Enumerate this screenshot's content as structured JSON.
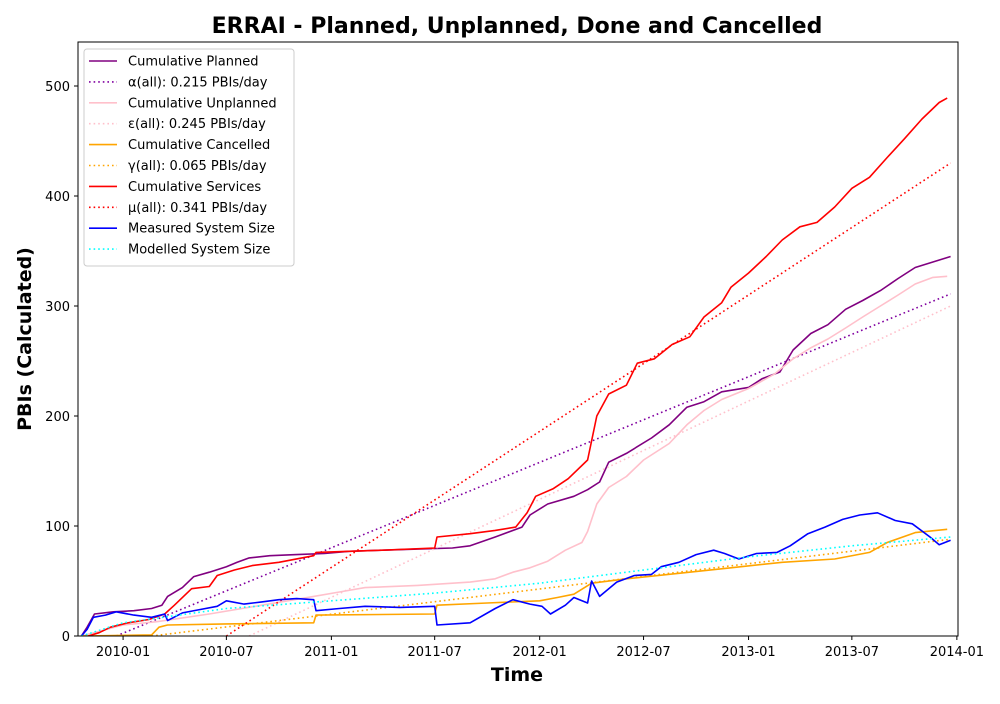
{
  "chart_data": {
    "type": "line",
    "title": "ERRAI - Planned, Unplanned, Done  and Cancelled",
    "xlabel": "Time",
    "ylabel": "PBIs (Calculated)",
    "xlim": [
      "2009-10-14",
      "2014-01-03"
    ],
    "ylim": [
      0,
      540
    ],
    "x_ticks": [
      "2010-01",
      "2010-07",
      "2011-01",
      "2011-07",
      "2012-01",
      "2012-07",
      "2013-01",
      "2013-07",
      "2014-01"
    ],
    "y_ticks": [
      0,
      100,
      200,
      300,
      400,
      500
    ],
    "grid": false,
    "legend_position": "upper-left",
    "series": [
      {
        "name": "Cumulative Planned",
        "color": "#800080",
        "style": "solid",
        "points": [
          [
            "2009-10-20",
            0
          ],
          [
            "2009-10-30",
            8
          ],
          [
            "2009-11-12",
            20
          ],
          [
            "2009-12-15",
            22
          ],
          [
            "2010-01-20",
            23
          ],
          [
            "2010-02-20",
            25
          ],
          [
            "2010-03-10",
            28
          ],
          [
            "2010-03-20",
            36
          ],
          [
            "2010-04-15",
            44
          ],
          [
            "2010-05-05",
            54
          ],
          [
            "2010-06-01",
            58
          ],
          [
            "2010-07-01",
            63
          ],
          [
            "2010-07-20",
            67
          ],
          [
            "2010-08-10",
            71
          ],
          [
            "2010-09-15",
            73
          ],
          [
            "2010-11-01",
            74
          ],
          [
            "2010-12-20",
            75
          ],
          [
            "2011-02-01",
            77
          ],
          [
            "2011-04-01",
            78
          ],
          [
            "2011-06-01",
            79
          ],
          [
            "2011-08-01",
            80
          ],
          [
            "2011-09-01",
            82
          ],
          [
            "2011-10-15",
            90
          ],
          [
            "2011-12-01",
            99
          ],
          [
            "2011-12-15",
            110
          ],
          [
            "2012-01-15",
            120
          ],
          [
            "2012-03-01",
            127
          ],
          [
            "2012-03-25",
            133
          ],
          [
            "2012-04-15",
            140
          ],
          [
            "2012-05-01",
            158
          ],
          [
            "2012-06-01",
            166
          ],
          [
            "2012-07-15",
            180
          ],
          [
            "2012-08-15",
            192
          ],
          [
            "2012-09-15",
            208
          ],
          [
            "2012-10-15",
            213
          ],
          [
            "2012-11-15",
            222
          ],
          [
            "2013-01-01",
            226
          ],
          [
            "2013-01-25",
            234
          ],
          [
            "2013-02-25",
            240
          ],
          [
            "2013-03-20",
            260
          ],
          [
            "2013-04-20",
            275
          ],
          [
            "2013-05-20",
            283
          ],
          [
            "2013-06-20",
            297
          ],
          [
            "2013-07-20",
            305
          ],
          [
            "2013-08-20",
            314
          ],
          [
            "2013-09-20",
            325
          ],
          [
            "2013-10-20",
            335
          ],
          [
            "2013-11-20",
            340
          ],
          [
            "2013-12-21",
            345
          ]
        ]
      },
      {
        "name": "α(all): 0.215 PBIs/day",
        "color": "#8000a0",
        "style": "dotted",
        "points": [
          [
            "2009-12-20",
            0
          ],
          [
            "2013-12-21",
            311
          ]
        ]
      },
      {
        "name": "Cumulative Unplanned",
        "color": "#ffc0cb",
        "style": "solid",
        "points": [
          [
            "2009-10-20",
            0
          ],
          [
            "2010-01-01",
            10
          ],
          [
            "2010-03-01",
            13
          ],
          [
            "2010-06-01",
            20
          ],
          [
            "2010-09-01",
            28
          ],
          [
            "2010-12-01",
            36
          ],
          [
            "2011-01-15",
            40
          ],
          [
            "2011-03-01",
            44
          ],
          [
            "2011-06-01",
            46
          ],
          [
            "2011-09-01",
            49
          ],
          [
            "2011-10-15",
            52
          ],
          [
            "2011-11-15",
            58
          ],
          [
            "2011-12-15",
            62
          ],
          [
            "2012-01-15",
            68
          ],
          [
            "2012-02-15",
            78
          ],
          [
            "2012-03-15",
            85
          ],
          [
            "2012-03-25",
            95
          ],
          [
            "2012-04-10",
            120
          ],
          [
            "2012-05-01",
            135
          ],
          [
            "2012-06-01",
            145
          ],
          [
            "2012-07-01",
            160
          ],
          [
            "2012-08-15",
            175
          ],
          [
            "2012-09-15",
            192
          ],
          [
            "2012-10-15",
            205
          ],
          [
            "2012-11-15",
            215
          ],
          [
            "2013-01-01",
            225
          ],
          [
            "2013-02-15",
            238
          ],
          [
            "2013-03-20",
            252
          ],
          [
            "2013-04-20",
            262
          ],
          [
            "2013-05-20",
            270
          ],
          [
            "2013-06-20",
            280
          ],
          [
            "2013-07-20",
            290
          ],
          [
            "2013-08-20",
            300
          ],
          [
            "2013-09-20",
            310
          ],
          [
            "2013-10-20",
            320
          ],
          [
            "2013-11-20",
            326
          ],
          [
            "2013-12-15",
            327
          ]
        ]
      },
      {
        "name": "ε(all): 0.245 PBIs/day",
        "color": "#ffc0cb",
        "style": "dotted",
        "points": [
          [
            "2010-08-10",
            0
          ],
          [
            "2013-12-21",
            300
          ]
        ]
      },
      {
        "name": "Cumulative Cancelled",
        "color": "#ffa500",
        "style": "solid",
        "points": [
          [
            "2009-10-20",
            0
          ],
          [
            "2010-02-20",
            1
          ],
          [
            "2010-03-05",
            8
          ],
          [
            "2010-03-20",
            10
          ],
          [
            "2010-07-01",
            11
          ],
          [
            "2010-12-01",
            12
          ],
          [
            "2010-12-05",
            19
          ],
          [
            "2011-07-01",
            20
          ],
          [
            "2011-07-05",
            28
          ],
          [
            "2011-10-01",
            30
          ],
          [
            "2012-01-01",
            32
          ],
          [
            "2012-02-01",
            35
          ],
          [
            "2012-03-01",
            38
          ],
          [
            "2012-04-01",
            48
          ],
          [
            "2012-06-01",
            52
          ],
          [
            "2012-09-01",
            57
          ],
          [
            "2012-12-01",
            62
          ],
          [
            "2013-03-01",
            67
          ],
          [
            "2013-06-01",
            70
          ],
          [
            "2013-08-01",
            76
          ],
          [
            "2013-09-01",
            85
          ],
          [
            "2013-10-20",
            94
          ],
          [
            "2013-12-15",
            97
          ]
        ]
      },
      {
        "name": "γ(all): 0.065 PBIs/day",
        "color": "#ffa500",
        "style": "dotted",
        "points": [
          [
            "2010-02-20",
            0
          ],
          [
            "2013-12-21",
            88
          ]
        ]
      },
      {
        "name": "Cumulative Services",
        "color": "#ff0000",
        "style": "solid",
        "points": [
          [
            "2009-11-01",
            0
          ],
          [
            "2009-11-20",
            3
          ],
          [
            "2009-12-10",
            8
          ],
          [
            "2010-01-10",
            12
          ],
          [
            "2010-02-15",
            15
          ],
          [
            "2010-03-15",
            20
          ],
          [
            "2010-04-01",
            28
          ],
          [
            "2010-05-01",
            43
          ],
          [
            "2010-06-01",
            45
          ],
          [
            "2010-06-15",
            55
          ],
          [
            "2010-07-15",
            60
          ],
          [
            "2010-08-15",
            64
          ],
          [
            "2010-10-01",
            67
          ],
          [
            "2010-12-01",
            73
          ],
          [
            "2010-12-05",
            76
          ],
          [
            "2011-02-01",
            77
          ],
          [
            "2011-04-01",
            78
          ],
          [
            "2011-07-01",
            80
          ],
          [
            "2011-07-05",
            90
          ],
          [
            "2011-09-01",
            93
          ],
          [
            "2011-10-15",
            96
          ],
          [
            "2011-11-20",
            99
          ],
          [
            "2011-12-10",
            112
          ],
          [
            "2011-12-25",
            127
          ],
          [
            "2012-01-25",
            134
          ],
          [
            "2012-02-20",
            143
          ],
          [
            "2012-03-25",
            160
          ],
          [
            "2012-04-10",
            200
          ],
          [
            "2012-05-01",
            220
          ],
          [
            "2012-06-01",
            228
          ],
          [
            "2012-06-20",
            248
          ],
          [
            "2012-07-20",
            252
          ],
          [
            "2012-08-20",
            265
          ],
          [
            "2012-09-20",
            272
          ],
          [
            "2012-10-15",
            290
          ],
          [
            "2012-11-15",
            303
          ],
          [
            "2012-12-01",
            317
          ],
          [
            "2013-01-01",
            330
          ],
          [
            "2013-02-01",
            345
          ],
          [
            "2013-03-01",
            360
          ],
          [
            "2013-04-01",
            372
          ],
          [
            "2013-05-01",
            376
          ],
          [
            "2013-06-01",
            390
          ],
          [
            "2013-07-01",
            407
          ],
          [
            "2013-08-01",
            417
          ],
          [
            "2013-09-01",
            435
          ],
          [
            "2013-10-01",
            452
          ],
          [
            "2013-11-01",
            470
          ],
          [
            "2013-12-01",
            485
          ],
          [
            "2013-12-15",
            489
          ]
        ]
      },
      {
        "name": "μ(all): 0.341 PBIs/day",
        "color": "#ff0000",
        "style": "dotted",
        "points": [
          [
            "2010-07-01",
            0
          ],
          [
            "2013-12-21",
            430
          ]
        ]
      },
      {
        "name": "Measured System Size",
        "color": "#0000ff",
        "style": "solid",
        "points": [
          [
            "2009-10-20",
            0
          ],
          [
            "2009-10-30",
            6
          ],
          [
            "2009-11-10",
            17
          ],
          [
            "2009-12-01",
            19
          ],
          [
            "2009-12-20",
            22
          ],
          [
            "2010-01-20",
            19
          ],
          [
            "2010-02-20",
            17
          ],
          [
            "2010-03-15",
            20
          ],
          [
            "2010-03-20",
            14
          ],
          [
            "2010-04-15",
            21
          ],
          [
            "2010-05-15",
            24
          ],
          [
            "2010-06-15",
            27
          ],
          [
            "2010-07-01",
            32
          ],
          [
            "2010-08-01",
            29
          ],
          [
            "2010-09-01",
            31
          ],
          [
            "2010-10-01",
            33
          ],
          [
            "2010-11-01",
            34
          ],
          [
            "2010-12-01",
            33
          ],
          [
            "2010-12-05",
            23
          ],
          [
            "2011-01-15",
            25
          ],
          [
            "2011-03-01",
            27
          ],
          [
            "2011-05-01",
            26
          ],
          [
            "2011-07-01",
            27
          ],
          [
            "2011-07-05",
            10
          ],
          [
            "2011-09-01",
            12
          ],
          [
            "2011-10-15",
            25
          ],
          [
            "2011-11-15",
            33
          ],
          [
            "2011-12-15",
            29
          ],
          [
            "2012-01-05",
            27
          ],
          [
            "2012-01-20",
            20
          ],
          [
            "2012-02-15",
            28
          ],
          [
            "2012-03-01",
            35
          ],
          [
            "2012-03-25",
            30
          ],
          [
            "2012-04-01",
            50
          ],
          [
            "2012-04-15",
            36
          ],
          [
            "2012-05-15",
            49
          ],
          [
            "2012-06-15",
            55
          ],
          [
            "2012-07-15",
            56
          ],
          [
            "2012-08-01",
            63
          ],
          [
            "2012-09-01",
            67
          ],
          [
            "2012-10-01",
            74
          ],
          [
            "2012-11-01",
            78
          ],
          [
            "2012-11-20",
            75
          ],
          [
            "2012-12-15",
            70
          ],
          [
            "2013-01-15",
            75
          ],
          [
            "2013-02-20",
            76
          ],
          [
            "2013-03-15",
            82
          ],
          [
            "2013-04-15",
            93
          ],
          [
            "2013-05-15",
            99
          ],
          [
            "2013-06-15",
            106
          ],
          [
            "2013-07-15",
            110
          ],
          [
            "2013-08-15",
            112
          ],
          [
            "2013-09-15",
            105
          ],
          [
            "2013-10-15",
            102
          ],
          [
            "2013-11-15",
            90
          ],
          [
            "2013-12-01",
            83
          ],
          [
            "2013-12-21",
            87
          ]
        ]
      },
      {
        "name": "Modelled System Size",
        "color": "#00ffff",
        "style": "dotted",
        "points": [
          [
            "2009-10-20",
            0
          ],
          [
            "2010-01-01",
            12
          ],
          [
            "2010-07-01",
            25
          ],
          [
            "2011-01-01",
            32
          ],
          [
            "2011-07-01",
            39
          ],
          [
            "2012-01-01",
            48
          ],
          [
            "2012-07-01",
            60
          ],
          [
            "2013-01-01",
            72
          ],
          [
            "2013-07-01",
            82
          ],
          [
            "2013-12-21",
            90
          ]
        ]
      }
    ]
  }
}
